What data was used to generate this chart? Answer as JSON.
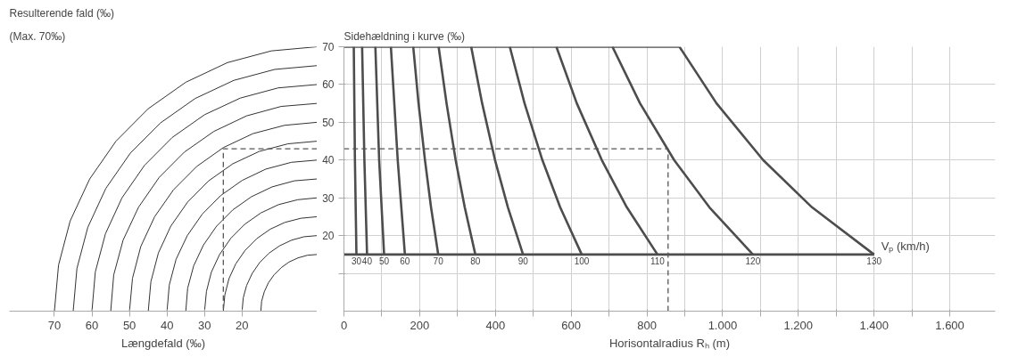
{
  "chart_data": [
    {
      "type": "line",
      "title": "Resulterende fald (‰)",
      "subtitle": "(Max. 70‰)",
      "xlabel": "Længdefald (‰)",
      "xlim": [
        82,
        0
      ],
      "ylim": [
        0,
        70
      ],
      "xticks": [
        70,
        60,
        50,
        40,
        30,
        20
      ],
      "tick_labels": "x",
      "grid": false,
      "series": [
        {
          "color": "#333333",
          "x": [
            15,
            14.8,
            14.1,
            13.0,
            11.5,
            9.6,
            7.5,
            5.1,
            2.6,
            0
          ],
          "values": [
            0,
            2.6,
            5.1,
            7.5,
            9.6,
            11.5,
            13.0,
            14.1,
            14.8,
            15
          ]
        },
        {
          "color": "#333333",
          "x": [
            20,
            19.7,
            18.8,
            17.3,
            15.3,
            12.9,
            10,
            6.8,
            3.5,
            0
          ],
          "values": [
            0,
            3.5,
            6.8,
            10,
            12.9,
            15.3,
            17.3,
            18.8,
            19.7,
            20
          ]
        },
        {
          "color": "#333333",
          "x": [
            25,
            24.6,
            23.5,
            21.7,
            19.2,
            16.1,
            12.5,
            8.6,
            4.3,
            0
          ],
          "values": [
            0,
            4.3,
            8.6,
            12.5,
            16.1,
            19.2,
            21.7,
            23.5,
            24.6,
            25
          ]
        },
        {
          "color": "#333333",
          "x": [
            30,
            29.5,
            28.2,
            26.0,
            23.0,
            19.3,
            15,
            10.3,
            5.2,
            0
          ],
          "values": [
            0,
            5.2,
            10.3,
            15,
            19.3,
            23.0,
            26.0,
            28.2,
            29.5,
            30
          ]
        },
        {
          "color": "#333333",
          "x": [
            35,
            34.5,
            32.9,
            30.3,
            26.8,
            22.5,
            17.5,
            12.0,
            6.1,
            0
          ],
          "values": [
            0,
            6.1,
            12.0,
            17.5,
            22.5,
            26.8,
            30.3,
            32.9,
            34.5,
            35
          ]
        },
        {
          "color": "#333333",
          "x": [
            40,
            39.4,
            37.6,
            34.6,
            30.6,
            25.7,
            20,
            13.7,
            6.9,
            0
          ],
          "values": [
            0,
            6.9,
            13.7,
            20,
            25.7,
            30.6,
            34.6,
            37.6,
            39.4,
            40
          ]
        },
        {
          "color": "#333333",
          "x": [
            45,
            44.3,
            42.3,
            39.0,
            34.5,
            28.9,
            22.5,
            15.4,
            7.8,
            0
          ],
          "values": [
            0,
            7.8,
            15.4,
            22.5,
            28.9,
            34.5,
            39.0,
            42.3,
            44.3,
            45
          ]
        },
        {
          "color": "#333333",
          "x": [
            50,
            49.2,
            47.0,
            43.3,
            38.3,
            32.1,
            25,
            17.1,
            8.7,
            0
          ],
          "values": [
            0,
            8.7,
            17.1,
            25,
            32.1,
            38.3,
            43.3,
            47.0,
            49.2,
            50
          ]
        },
        {
          "color": "#333333",
          "x": [
            55,
            54.2,
            51.7,
            47.6,
            42.1,
            35.4,
            27.5,
            18.8,
            9.6,
            0
          ],
          "values": [
            0,
            9.6,
            18.8,
            27.5,
            35.4,
            42.1,
            47.6,
            51.7,
            54.2,
            55
          ]
        },
        {
          "color": "#333333",
          "x": [
            60,
            59.1,
            56.4,
            52.0,
            46.0,
            38.6,
            30,
            20.5,
            10.4,
            0
          ],
          "values": [
            0,
            10.4,
            20.5,
            30,
            38.6,
            46.0,
            52.0,
            56.4,
            59.1,
            60
          ]
        },
        {
          "color": "#333333",
          "x": [
            65,
            64.0,
            61.1,
            56.3,
            49.8,
            41.8,
            32.5,
            22.2,
            11.3,
            0
          ],
          "values": [
            0,
            11.3,
            22.2,
            32.5,
            41.8,
            49.8,
            56.3,
            61.1,
            64.0,
            65
          ]
        },
        {
          "color": "#333333",
          "x": [
            70,
            68.9,
            65.8,
            60.6,
            53.6,
            45.0,
            35,
            23.9,
            12.2,
            0
          ],
          "values": [
            0,
            12.2,
            23.9,
            35,
            45.0,
            53.6,
            60.6,
            65.8,
            68.9,
            70
          ]
        },
        {
          "color": "#555555",
          "line_style": "dashed",
          "x": [
            0,
            25,
            25
          ],
          "values": [
            43,
            43,
            0
          ]
        }
      ]
    },
    {
      "type": "line",
      "ylabel": "Sidehældning i kurve (‰)",
      "xlabel": "Horisontalradius Rₕ (m)",
      "xlim": [
        0,
        1720
      ],
      "ylim": [
        0,
        70
      ],
      "xticks": [
        0,
        {
          "value": 100,
          "label": null
        },
        200,
        {
          "value": 300,
          "label": null
        },
        400,
        {
          "value": 500,
          "label": null
        },
        600,
        {
          "value": 700,
          "label": null
        },
        800,
        {
          "value": 900,
          "label": null
        },
        {
          "value": 1000,
          "label": "1.000"
        },
        {
          "value": 1100,
          "label": null
        },
        {
          "value": 1200,
          "label": "1.200"
        },
        {
          "value": 1300,
          "label": null
        },
        {
          "value": 1400,
          "label": "1.400"
        },
        {
          "value": 1500,
          "label": null
        },
        {
          "value": 1600,
          "label": "1.600"
        }
      ],
      "yticks": [
        {
          "value": 10,
          "label": null
        },
        20,
        30,
        40,
        50,
        60,
        70
      ],
      "grid": true,
      "series": [
        {
          "color": "#4d4d4d",
          "x": [
            0,
            886
          ],
          "values": [
            70,
            70
          ]
        },
        {
          "color": "#4d4d4d",
          "x": [
            0,
            1400
          ],
          "values": [
            15,
            15
          ]
        },
        {
          "color": "#4d4d4d",
          "x": [
            26,
            29,
            33
          ],
          "values": [
            70,
            40,
            15
          ]
        },
        {
          "color": "#4d4d4d",
          "x": [
            48,
            54,
            61
          ],
          "values": [
            70,
            40,
            15
          ]
        },
        {
          "color": "#4d4d4d",
          "x": [
            83,
            93,
            106
          ],
          "values": [
            70,
            40,
            15
          ]
        },
        {
          "color": "#4d4d4d",
          "x": [
            124,
            142,
            161
          ],
          "values": [
            70,
            40,
            15
          ]
        },
        {
          "color": "#4d4d4d",
          "x": [
            183,
            197,
            214,
            230,
            249
          ],
          "values": [
            70,
            55,
            40,
            27.5,
            15
          ]
        },
        {
          "color": "#4d4d4d",
          "x": [
            250,
            271,
            295,
            319,
            347
          ],
          "values": [
            70,
            55,
            40,
            27.5,
            15
          ]
        },
        {
          "color": "#4d4d4d",
          "x": [
            336,
            365,
            399,
            433,
            473
          ],
          "values": [
            70,
            55,
            40,
            27.5,
            15
          ]
        },
        {
          "color": "#4d4d4d",
          "x": [
            438,
            477,
            524,
            571,
            628
          ],
          "values": [
            70,
            55,
            40,
            27.5,
            15
          ]
        },
        {
          "color": "#4d4d4d",
          "x": [
            561,
            615,
            681,
            747,
            828
          ],
          "values": [
            70,
            55,
            40,
            27.5,
            15
          ]
        },
        {
          "color": "#4d4d4d",
          "x": [
            709,
            782,
            872,
            965,
            1080
          ],
          "values": [
            70,
            55,
            40,
            27.5,
            15
          ]
        },
        {
          "color": "#4d4d4d",
          "x": [
            886,
            984,
            1107,
            1236,
            1400
          ],
          "values": [
            70,
            55,
            40,
            27.5,
            15
          ]
        },
        {
          "color": "#555555",
          "line_style": "dashed",
          "x": [
            856,
            856,
            0
          ],
          "values": [
            0,
            43,
            43
          ]
        }
      ],
      "annotations": [
        {
          "text": "30",
          "x": 33,
          "y": 15
        },
        {
          "text": "40",
          "x": 61,
          "y": 15
        },
        {
          "text": "50",
          "x": 106,
          "y": 15
        },
        {
          "text": "60",
          "x": 161,
          "y": 15
        },
        {
          "text": "70",
          "x": 249,
          "y": 15
        },
        {
          "text": "80",
          "x": 347,
          "y": 15
        },
        {
          "text": "90",
          "x": 473,
          "y": 15
        },
        {
          "text": "100",
          "x": 628,
          "y": 15
        },
        {
          "text": "110",
          "x": 828,
          "y": 15
        },
        {
          "text": "120",
          "x": 1080,
          "y": 15
        },
        {
          "text": "130",
          "x": 1400,
          "y": 15
        },
        "Vₚ (km/h)"
      ]
    }
  ]
}
